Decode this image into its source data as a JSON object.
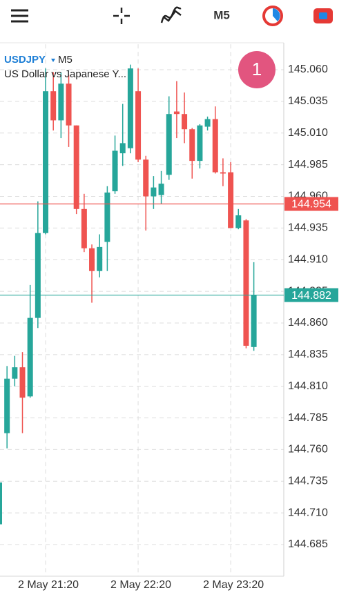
{
  "toolbar": {
    "timeframe": "M5"
  },
  "header": {
    "symbol": "USDJPY",
    "timeframe": "M5",
    "description": "US Dollar vs Japanese Y..."
  },
  "badge": "1",
  "chart_data": {
    "type": "candlestick",
    "categories": [
      null,
      null,
      null,
      null,
      null,
      null,
      "2 May 21:20",
      null,
      null,
      null,
      null,
      null,
      null,
      null,
      null,
      null,
      null,
      null,
      "2 May 22:20",
      null,
      null,
      null,
      null,
      null,
      null,
      null,
      null,
      null,
      null,
      null,
      "2 May 23:20",
      null,
      null,
      null
    ],
    "open": [
      144.701,
      144.773,
      144.816,
      144.825,
      144.802,
      144.864,
      144.931,
      145.043,
      145.02,
      145.049,
      145.016,
      144.95,
      144.919,
      144.901,
      144.924,
      144.964,
      144.994,
      144.998,
      145.043,
      144.989,
      144.96,
      144.961,
      144.977,
      145.027,
      145.025,
      145.013,
      144.988,
      145.015,
      145.021,
      144.979,
      144.979,
      144.935,
      144.941,
      144.841
    ],
    "high": [
      144.761,
      144.826,
      144.834,
      144.837,
      144.89,
      144.956,
      145.061,
      145.058,
      145.058,
      145.056,
      145.016,
      144.962,
      144.922,
      144.93,
      144.968,
      145.008,
      145.033,
      145.064,
      145.061,
      144.992,
      144.976,
      144.98,
      145.039,
      145.051,
      145.042,
      145.014,
      145.017,
      145.023,
      145.031,
      144.99,
      144.987,
      144.95,
      144.942,
      144.908
    ],
    "low": [
      144.698,
      144.761,
      144.81,
      144.773,
      144.801,
      144.856,
      144.93,
      145.012,
      145.006,
      144.999,
      144.946,
      144.916,
      144.876,
      144.896,
      144.901,
      144.962,
      144.984,
      144.994,
      144.987,
      144.933,
      144.95,
      144.954,
      144.973,
      145.006,
      145.002,
      144.974,
      144.982,
      145.012,
      144.978,
      144.968,
      144.935,
      144.934,
      144.84,
      144.838
    ],
    "close": [
      144.734,
      144.816,
      144.825,
      144.801,
      144.864,
      144.931,
      145.043,
      145.02,
      145.049,
      145.016,
      144.95,
      144.919,
      144.901,
      144.92,
      144.963,
      144.996,
      145.002,
      145.061,
      144.989,
      144.96,
      144.967,
      144.97,
      145.025,
      145.025,
      145.013,
      144.988,
      145.016,
      145.021,
      144.979,
      144.978,
      144.935,
      144.945,
      144.842,
      144.882
    ],
    "up_color": "#26a69a",
    "down_color": "#ef5350",
    "price_lines": [
      {
        "value": 144.954,
        "color": "#ef5350"
      },
      {
        "value": 144.882,
        "color": "#26a69a"
      }
    ],
    "ylim": [
      144.66,
      145.08
    ],
    "yticks": [
      {
        "value": 145.06,
        "label": "145.060"
      },
      145.035,
      {
        "value": 145.01,
        "label": "145.010"
      },
      144.985,
      {
        "value": 144.96,
        "label": "144.960"
      },
      144.935,
      {
        "value": 144.91,
        "label": "144.910"
      },
      144.885,
      {
        "value": 144.86,
        "label": "144.860"
      },
      144.835,
      {
        "value": 144.81,
        "label": "144.810"
      },
      144.785,
      {
        "value": 144.76,
        "label": "144.760"
      },
      144.735,
      {
        "value": 144.71,
        "label": "144.710"
      },
      144.685
    ],
    "grid": true
  }
}
